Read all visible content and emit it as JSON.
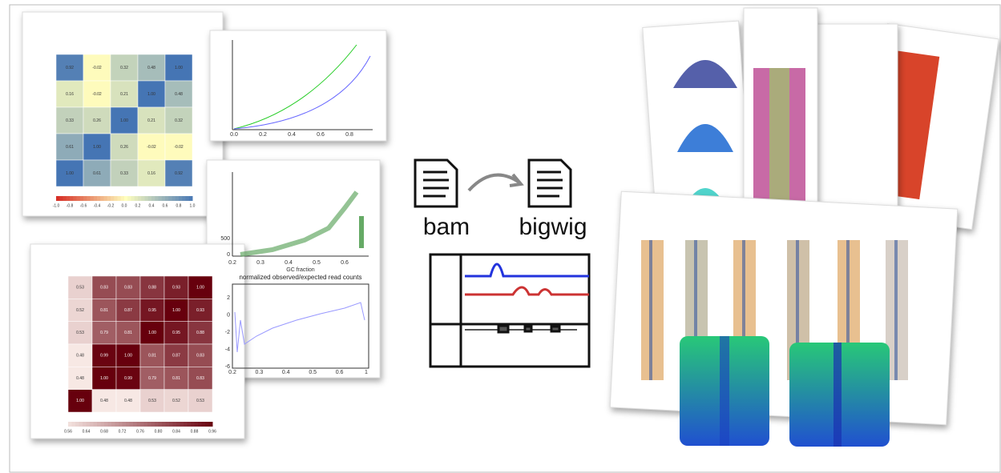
{
  "blue_heatmap": {
    "cells": [
      [
        "0.92",
        "-0.02",
        "0.32",
        "0.48",
        "1.00"
      ],
      [
        "0.16",
        "-0.02",
        "0.21",
        "1.00",
        "0.48"
      ],
      [
        "0.33",
        "0.26",
        "1.00",
        "0.21",
        "0.32"
      ],
      [
        "0.61",
        "1.00",
        "0.26",
        "-0.02",
        "-0.02"
      ],
      [
        "1.00",
        "0.61",
        "0.33",
        "0.16",
        "0.92"
      ]
    ],
    "colorbar_ticks": [
      "-1.0",
      "-0.8",
      "-0.6",
      "-0.4",
      "-0.2",
      "0.0",
      "0.2",
      "0.4",
      "0.6",
      "0.8",
      "1.0"
    ]
  },
  "red_heatmap": {
    "cells": [
      [
        "0.53",
        "0.83",
        "0.83",
        "0.88",
        "0.93",
        "1.00"
      ],
      [
        "0.52",
        "0.81",
        "0.87",
        "0.95",
        "1.00",
        "0.93"
      ],
      [
        "0.53",
        "0.79",
        "0.81",
        "1.00",
        "0.95",
        "0.88"
      ],
      [
        "0.48",
        "0.99",
        "1.00",
        "0.81",
        "0.87",
        "0.83"
      ],
      [
        "0.48",
        "1.00",
        "0.99",
        "0.79",
        "0.81",
        "0.83"
      ],
      [
        "1.00",
        "0.48",
        "0.48",
        "0.53",
        "0.52",
        "0.53"
      ]
    ],
    "colorbar_ticks": [
      "0.56",
      "0.64",
      "0.68",
      "0.72",
      "0.76",
      "0.80",
      "0.84",
      "0.88",
      "0.96"
    ]
  },
  "top_plot": {
    "xticks": [
      "0.0",
      "0.2",
      "0.4",
      "0.6",
      "0.8"
    ]
  },
  "gc_plot": {
    "xlabel": "GC fraction",
    "xticks": [
      "0.2",
      "0.3",
      "0.4",
      "0.5",
      "0.6"
    ],
    "yticks": [
      "500",
      "0"
    ]
  },
  "ratio_plot": {
    "title": "normalized observed/expected read counts",
    "xticks": [
      "0.2",
      "0.3",
      "0.4",
      "0.5",
      "0.6",
      "1"
    ],
    "yticks": [
      "2",
      "0",
      "-2",
      "-4",
      "-6"
    ]
  },
  "workflow": {
    "input": "bam",
    "output": "bigwig"
  }
}
